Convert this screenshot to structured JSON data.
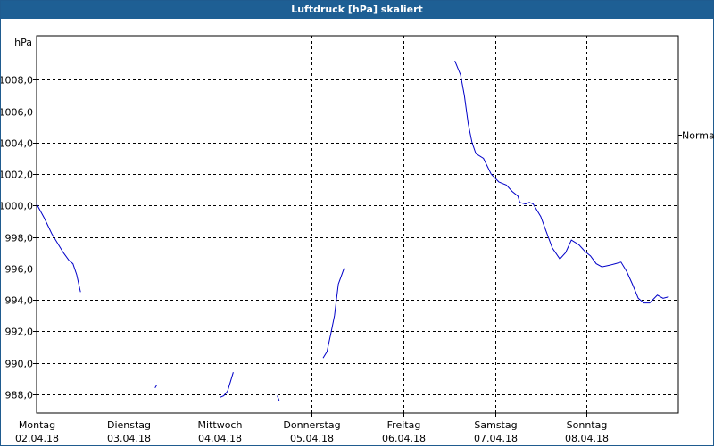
{
  "window": {
    "title": "Luftdruck [hPa] skaliert"
  },
  "colors": {
    "titlebar": "#1e5f94",
    "series": "#0000c8",
    "grid": "#000000"
  },
  "chart_data": {
    "type": "line",
    "title": "Luftdruck [hPa] skaliert",
    "ylabel": "hPa",
    "ylim": [
      986.8,
      1010.8
    ],
    "yticks": [
      {
        "value": 988,
        "label": "988,0"
      },
      {
        "value": 990,
        "label": "990,0"
      },
      {
        "value": 992,
        "label": "992,0"
      },
      {
        "value": 994,
        "label": "994,0"
      },
      {
        "value": 996,
        "label": "996,0"
      },
      {
        "value": 998,
        "label": "998,0"
      },
      {
        "value": 1000,
        "label": "1000,0"
      },
      {
        "value": 1002,
        "label": "1002,0"
      },
      {
        "value": 1004,
        "label": "1004,0"
      },
      {
        "value": 1006,
        "label": "1006,0"
      },
      {
        "value": 1008,
        "label": "1008,0"
      }
    ],
    "xlim": [
      "02.04.18 00:00",
      "09.04.18 00:00"
    ],
    "xticks": [
      {
        "day": "Montag",
        "date": "02.04.18"
      },
      {
        "day": "Dienstag",
        "date": "03.04.18"
      },
      {
        "day": "Mittwoch",
        "date": "04.04.18"
      },
      {
        "day": "Donnerstag",
        "date": "05.04.18"
      },
      {
        "day": "Freitag",
        "date": "06.04.18"
      },
      {
        "day": "Samstag",
        "date": "07.04.18"
      },
      {
        "day": "Sonntag",
        "date": "08.04.18"
      }
    ],
    "reference": {
      "label": "Normal",
      "value": 1004.5
    },
    "grid": true,
    "series": [
      {
        "segments": [
          [
            [
              "02.04.18 00:00",
              1000.1
            ],
            [
              "02.04.18 02:00",
              999.2
            ],
            [
              "02.04.18 04:00",
              998.2
            ],
            [
              "02.04.18 05:30",
              997.6
            ],
            [
              "02.04.18 07:00",
              997.0
            ],
            [
              "02.04.18 08:30",
              996.5
            ],
            [
              "02.04.18 09:30",
              996.3
            ],
            [
              "02.04.18 10:30",
              995.6
            ],
            [
              "02.04.18 11:30",
              994.5
            ]
          ],
          [
            [
              "03.04.18 07:00",
              988.4
            ],
            [
              "03.04.18 07:30",
              988.6
            ]
          ],
          [
            [
              "04.04.18 00:00",
              987.8
            ],
            [
              "04.04.18 01:00",
              987.9
            ],
            [
              "04.04.18 02:00",
              988.2
            ],
            [
              "04.04.18 02:45",
              988.8
            ],
            [
              "04.04.18 03:30",
              989.4
            ]
          ],
          [
            [
              "04.04.18 15:00",
              987.9
            ],
            [
              "04.04.18 15:30",
              987.6
            ]
          ],
          [
            [
              "05.04.18 03:00",
              990.3
            ],
            [
              "05.04.18 04:00",
              990.7
            ],
            [
              "05.04.18 05:00",
              991.8
            ],
            [
              "05.04.18 06:00",
              993.0
            ],
            [
              "05.04.18 07:00",
              995.0
            ],
            [
              "05.04.18 08:30",
              996.0
            ]
          ],
          [
            [
              "06.04.18 13:30",
              1009.2
            ],
            [
              "06.04.18 15:00",
              1008.3
            ],
            [
              "06.04.18 16:00",
              1007.0
            ],
            [
              "06.04.18 17:00",
              1005.2
            ],
            [
              "06.04.18 18:00",
              1004.0
            ],
            [
              "06.04.18 19:00",
              1003.3
            ],
            [
              "06.04.18 21:00",
              1003.0
            ],
            [
              "06.04.18 23:00",
              1002.0
            ],
            [
              "07.04.18 01:00",
              1001.5
            ],
            [
              "07.04.18 03:00",
              1001.3
            ],
            [
              "07.04.18 04:30",
              1000.9
            ],
            [
              "07.04.18 06:00",
              1000.6
            ],
            [
              "07.04.18 06:30",
              1000.2
            ],
            [
              "07.04.18 08:00",
              1000.1
            ],
            [
              "07.04.18 09:00",
              1000.2
            ],
            [
              "07.04.18 10:00",
              1000.1
            ],
            [
              "07.04.18 12:00",
              999.3
            ],
            [
              "07.04.18 13:30",
              998.3
            ],
            [
              "07.04.18 15:00",
              997.3
            ],
            [
              "07.04.18 17:00",
              996.6
            ],
            [
              "07.04.18 18:30",
              997.0
            ],
            [
              "07.04.18 20:00",
              997.8
            ],
            [
              "07.04.18 22:00",
              997.5
            ],
            [
              "07.04.18 23:30",
              997.1
            ],
            [
              "08.04.18 01:00",
              996.8
            ],
            [
              "08.04.18 02:30",
              996.3
            ],
            [
              "08.04.18 04:00",
              996.1
            ],
            [
              "08.04.18 06:00",
              996.2
            ],
            [
              "08.04.18 07:30",
              996.3
            ],
            [
              "08.04.18 09:00",
              996.4
            ],
            [
              "08.04.18 10:30",
              995.8
            ],
            [
              "08.04.18 12:00",
              995.0
            ],
            [
              "08.04.18 13:30",
              994.1
            ],
            [
              "08.04.18 15:00",
              993.8
            ],
            [
              "08.04.18 16:30",
              993.8
            ],
            [
              "08.04.18 18:30",
              994.3
            ],
            [
              "08.04.18 20:00",
              994.1
            ],
            [
              "08.04.18 21:30",
              994.2
            ]
          ]
        ]
      }
    ]
  }
}
